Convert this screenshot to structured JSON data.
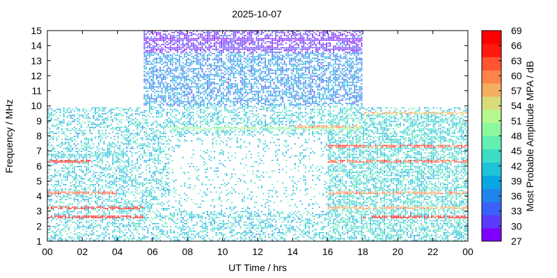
{
  "chart_data": {
    "type": "heatmap",
    "title": "2025-10-07",
    "xlabel": "UT Time / hrs",
    "ylabel": "Frequency / MHz",
    "xlim": [
      0,
      24
    ],
    "ylim": [
      1,
      15
    ],
    "x_tick_labels": [
      "00",
      "02",
      "04",
      "06",
      "08",
      "10",
      "12",
      "14",
      "16",
      "18",
      "20",
      "22",
      "00"
    ],
    "y_tick_labels": [
      "1",
      "2",
      "3",
      "4",
      "5",
      "6",
      "7",
      "8",
      "9",
      "10",
      "11",
      "12",
      "13",
      "14",
      "15"
    ],
    "colorbar": {
      "label": "Most Probable Amplitude MPA / dB",
      "range": [
        27,
        69
      ],
      "tick_labels": [
        "69",
        "66",
        "63",
        "60",
        "57",
        "54",
        "51",
        "48",
        "45",
        "42",
        "39",
        "36",
        "33",
        "30",
        "27"
      ],
      "colors": [
        "#7f00ff",
        "#5a3cfe",
        "#3b62f8",
        "#1e86ea",
        "#0aa7e4",
        "#1ec3d8",
        "#3ddcc5",
        "#62efb0",
        "#8cf89e",
        "#b4f88e",
        "#d8dc7a",
        "#f4b060",
        "#ff844a",
        "#ff5530",
        "#ff1a10",
        "#ff0000"
      ]
    },
    "coverage_regions": [
      {
        "x": [
          0,
          5.5
        ],
        "y": [
          1,
          9.9
        ]
      },
      {
        "x": [
          5.5,
          18.0
        ],
        "y": [
          1,
          15.0
        ]
      },
      {
        "x": [
          18.0,
          24.0
        ],
        "y": [
          1,
          9.9
        ]
      }
    ],
    "bands": [
      {
        "x": [
          0,
          5.5
        ],
        "y": 2.6,
        "db": 67
      },
      {
        "x": [
          0,
          5.5
        ],
        "y": 3.2,
        "db": 66
      },
      {
        "x": [
          0,
          4.0
        ],
        "y": 4.2,
        "db": 62
      },
      {
        "x": [
          0,
          2.5
        ],
        "y": 6.3,
        "db": 67
      },
      {
        "x": [
          0,
          4.5
        ],
        "y": 6.7,
        "db": 42
      },
      {
        "x": [
          5.5,
          18.0
        ],
        "y": 14.4,
        "db": 28
      },
      {
        "x": [
          5.5,
          18.0
        ],
        "y": 13.8,
        "db": 30
      },
      {
        "x": [
          7.0,
          18.0
        ],
        "y": 8.5,
        "db": 50
      },
      {
        "x": [
          14.0,
          18.0
        ],
        "y": 8.6,
        "db": 59
      },
      {
        "x": [
          16.0,
          24.0
        ],
        "y": 7.3,
        "db": 64
      },
      {
        "x": [
          16.0,
          24.0
        ],
        "y": 6.3,
        "db": 63
      },
      {
        "x": [
          16.0,
          24.0
        ],
        "y": 4.2,
        "db": 60
      },
      {
        "x": [
          16.0,
          24.0
        ],
        "y": 3.2,
        "db": 58
      },
      {
        "x": [
          18.0,
          24.0
        ],
        "y": 2.6,
        "db": 67
      },
      {
        "x": [
          18.0,
          24.0
        ],
        "y": 9.5,
        "db": 57
      }
    ]
  }
}
